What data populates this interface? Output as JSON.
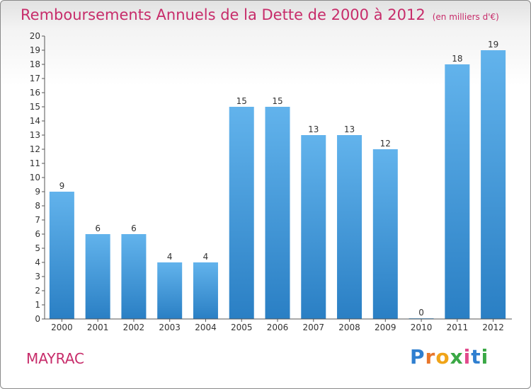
{
  "title": "Remboursements Annuels de la Dette de 2000 à 2012",
  "unit_note": "(en milliers d'€)",
  "footer": {
    "city": "MAYRAC",
    "brand": "Proxiti"
  },
  "colors": {
    "accent": "#c72c6a",
    "bar": "#3d93d7",
    "bar_light": "#62b3ec"
  },
  "chart_data": {
    "type": "bar",
    "title": "Remboursements Annuels de la Dette de 2000 à 2012",
    "xlabel": "",
    "ylabel": "",
    "categories": [
      "2000",
      "2001",
      "2002",
      "2003",
      "2004",
      "2005",
      "2006",
      "2007",
      "2008",
      "2009",
      "2010",
      "2011",
      "2012"
    ],
    "values": [
      9,
      6,
      6,
      4,
      4,
      15,
      15,
      13,
      13,
      12,
      0,
      18,
      19
    ],
    "ylim": [
      0,
      20
    ],
    "yticks": [
      0,
      1,
      2,
      3,
      4,
      5,
      6,
      7,
      8,
      9,
      10,
      11,
      12,
      13,
      14,
      15,
      16,
      17,
      18,
      19,
      20
    ],
    "grid": false,
    "data_labels": true
  }
}
